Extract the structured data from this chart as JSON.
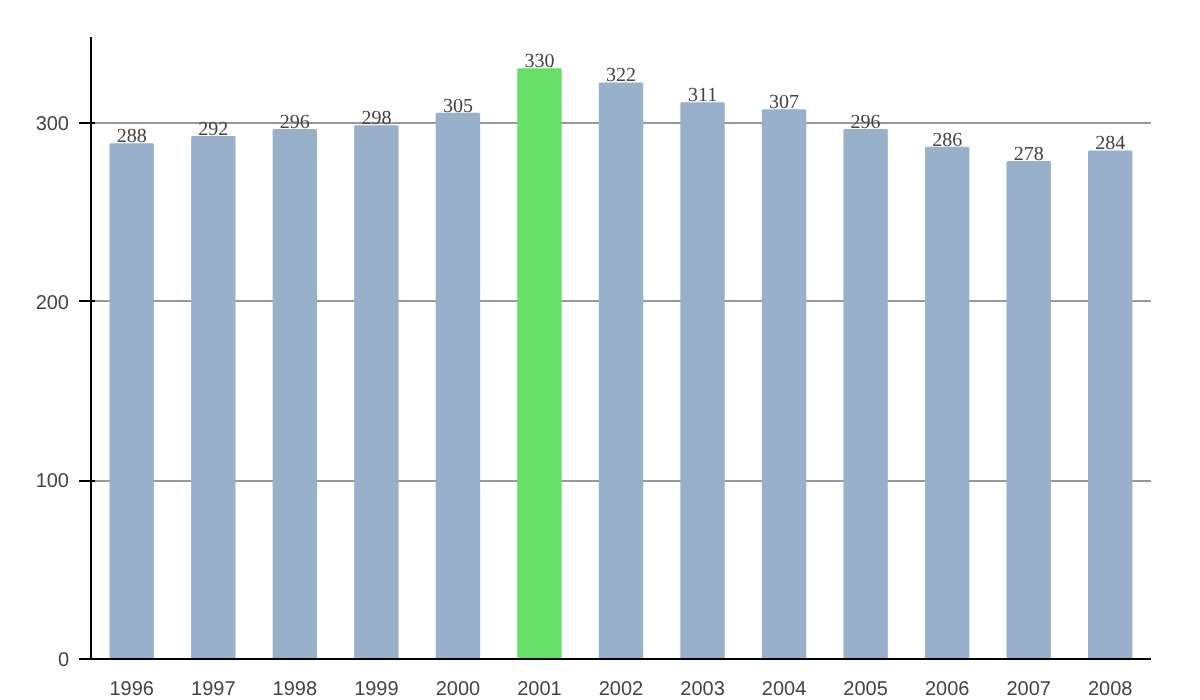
{
  "chart_data": {
    "type": "bar",
    "categories": [
      "1996",
      "1997",
      "1998",
      "1999",
      "2000",
      "2001",
      "2002",
      "2003",
      "2004",
      "2005",
      "2006",
      "2007",
      "2008"
    ],
    "values": [
      288,
      292,
      296,
      298,
      305,
      330,
      322,
      311,
      307,
      296,
      286,
      278,
      284
    ],
    "colors": [
      "#98b0c9",
      "#98b0c9",
      "#98b0c9",
      "#98b0c9",
      "#98b0c9",
      "#66e066",
      "#98b0c9",
      "#98b0c9",
      "#98b0c9",
      "#98b0c9",
      "#98b0c9",
      "#98b0c9",
      "#98b0c9"
    ],
    "ylim": [
      0,
      348
    ],
    "yticks": [
      0,
      100,
      200,
      300
    ],
    "grid": "y",
    "data_labels": true
  }
}
